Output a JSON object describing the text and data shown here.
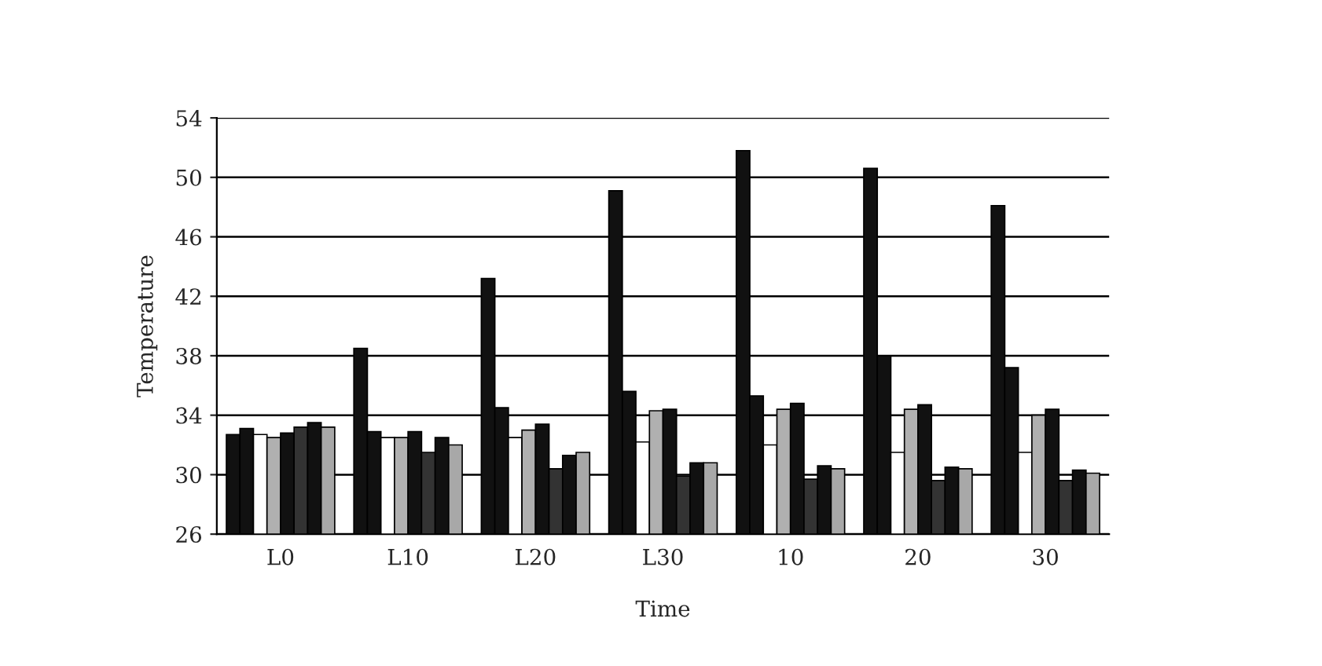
{
  "chart_data": {
    "type": "bar",
    "xlabel": "Time",
    "ylabel": "Temperature",
    "categories": [
      "L0",
      "L10",
      "L20",
      "L30",
      "10",
      "20",
      "30"
    ],
    "series": [
      {
        "color": "#111111",
        "values": [
          32.7,
          38.5,
          43.2,
          49.1,
          51.8,
          50.6,
          48.1
        ]
      },
      {
        "color": "#111111",
        "values": [
          33.1,
          32.9,
          34.5,
          35.6,
          35.3,
          38.0,
          37.2
        ]
      },
      {
        "color": "#ffffff",
        "values": [
          32.7,
          32.5,
          32.5,
          32.2,
          32.0,
          31.5,
          31.5
        ]
      },
      {
        "color": "#b0b0b0",
        "values": [
          32.5,
          32.5,
          33.0,
          34.3,
          34.4,
          34.4,
          34.0
        ]
      },
      {
        "color": "#111111",
        "values": [
          32.8,
          32.9,
          33.4,
          34.4,
          34.8,
          34.7,
          34.4
        ]
      },
      {
        "color": "#333333",
        "values": [
          33.2,
          31.5,
          30.4,
          29.9,
          29.7,
          29.6,
          29.6
        ]
      },
      {
        "color": "#111111",
        "values": [
          33.5,
          32.5,
          31.3,
          30.8,
          30.6,
          30.5,
          30.3
        ]
      },
      {
        "color": "#a8a8a8",
        "values": [
          33.2,
          32.0,
          31.5,
          30.8,
          30.4,
          30.4,
          30.1
        ]
      }
    ],
    "ylim": [
      26,
      54
    ],
    "yticks": [
      26,
      30,
      34,
      38,
      42,
      46,
      50,
      54
    ],
    "grid": "y"
  }
}
